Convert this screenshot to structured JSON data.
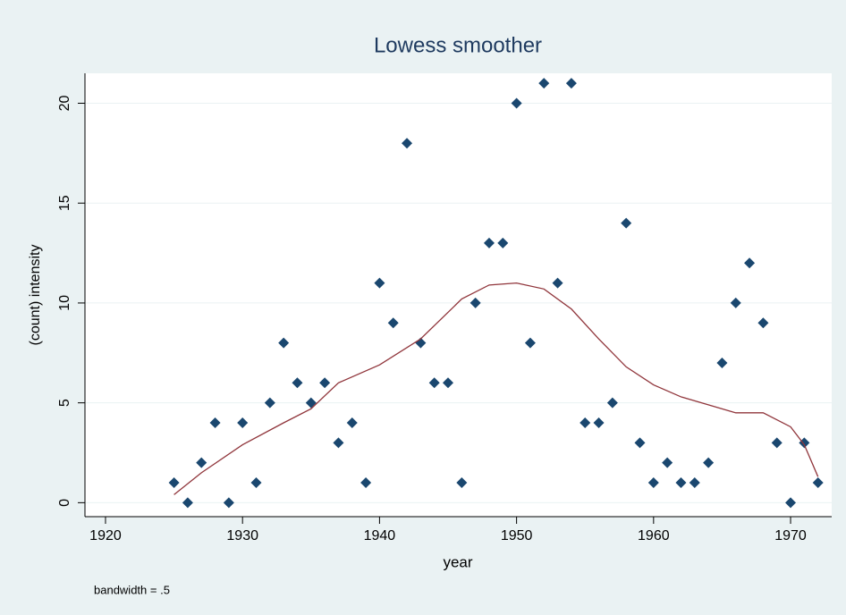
{
  "chart_data": {
    "type": "scatter",
    "title": "Lowess smoother",
    "x_label": "year",
    "y_label": "(count) intensity",
    "note": "bandwidth = .5",
    "xlim": [
      1918.5,
      1973
    ],
    "ylim": [
      -0.7,
      21.5
    ],
    "xticks": [
      1920,
      1930,
      1940,
      1950,
      1960,
      1970
    ],
    "yticks": [
      0,
      5,
      10,
      15,
      20
    ],
    "grid": true,
    "series": [
      {
        "style": "markers",
        "color": "#1a476f",
        "x": [
          1925,
          1926,
          1927,
          1928,
          1929,
          1930,
          1931,
          1932,
          1933,
          1934,
          1935,
          1936,
          1937,
          1938,
          1939,
          1940,
          1941,
          1942,
          1943,
          1944,
          1945,
          1946,
          1947,
          1948,
          1949,
          1950,
          1951,
          1952,
          1953,
          1954,
          1955,
          1956,
          1957,
          1958,
          1959,
          1960,
          1961,
          1962,
          1963,
          1964,
          1965,
          1966,
          1967,
          1968,
          1969,
          1970,
          1971,
          1972
        ],
        "values": [
          1,
          0,
          2,
          4,
          0,
          4,
          1,
          5,
          8,
          6,
          5,
          6,
          3,
          4,
          1,
          11,
          9,
          18,
          8,
          6,
          6,
          1,
          10,
          13,
          13,
          20,
          8,
          21,
          11,
          21,
          4,
          4,
          5,
          14,
          3,
          1,
          2,
          1,
          1,
          2,
          7,
          10,
          12,
          9,
          3,
          0,
          3,
          1
        ]
      },
      {
        "style": "line",
        "color": "#90353b",
        "x": [
          1925,
          1927,
          1930,
          1933,
          1935,
          1937,
          1940,
          1943,
          1946,
          1948,
          1950,
          1952,
          1954,
          1956,
          1958,
          1960,
          1962,
          1964,
          1966,
          1968,
          1970,
          1971,
          1972
        ],
        "values": [
          0.4,
          1.5,
          2.9,
          4.0,
          4.7,
          6.0,
          6.9,
          8.2,
          10.2,
          10.9,
          11.0,
          10.7,
          9.7,
          8.2,
          6.8,
          5.9,
          5.3,
          4.9,
          4.5,
          4.5,
          3.8,
          2.9,
          1.3
        ]
      }
    ]
  }
}
